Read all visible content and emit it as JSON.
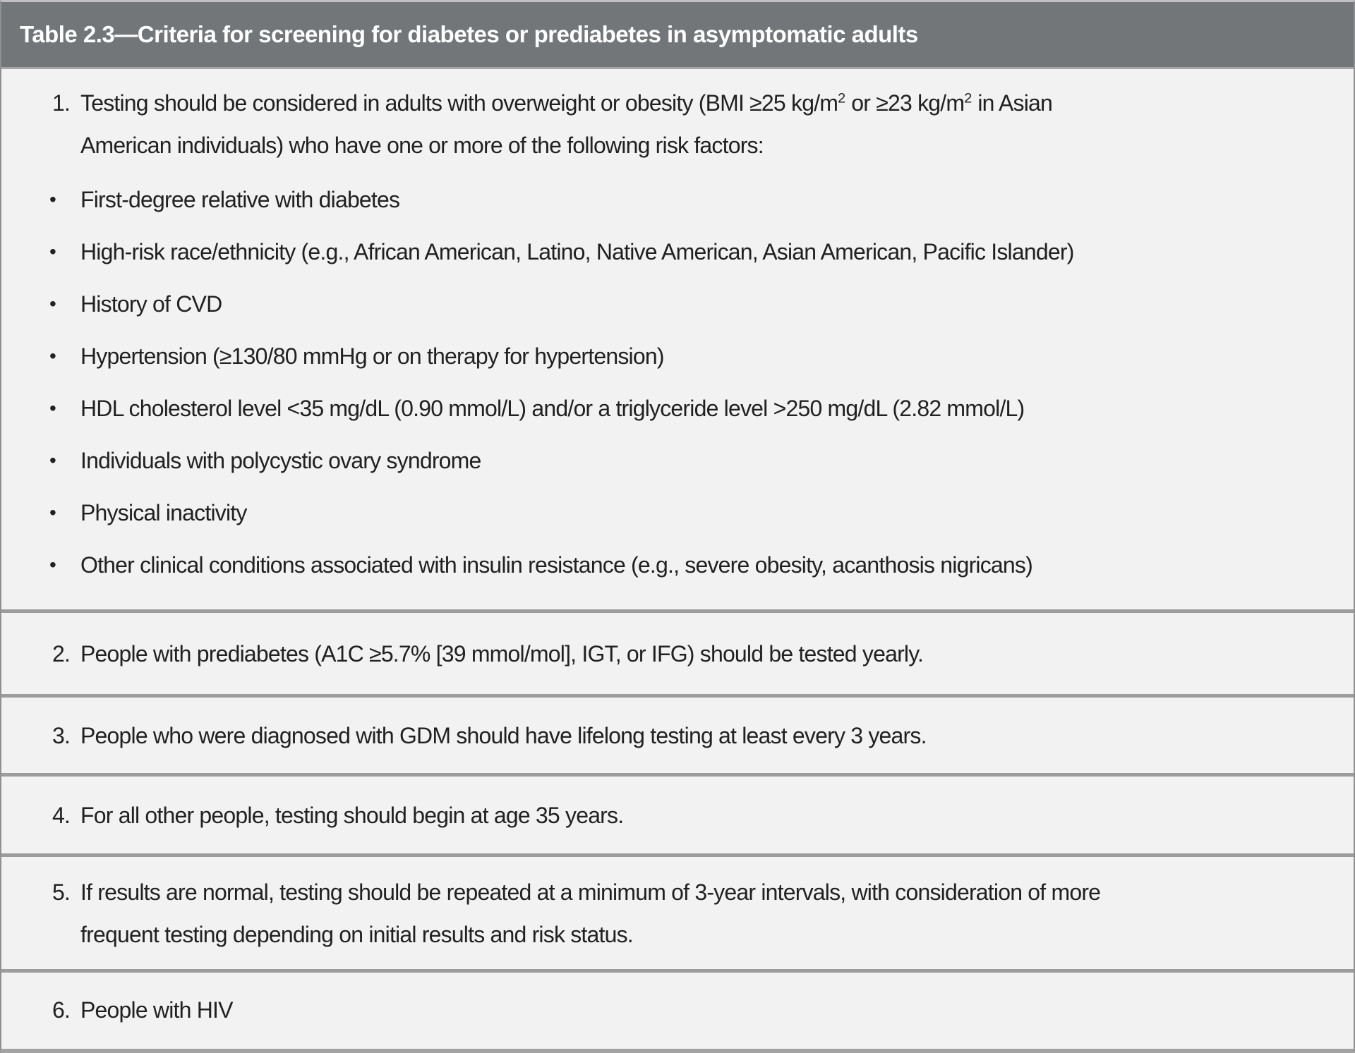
{
  "colors": {
    "header_bg": "#727679",
    "header_text": "#ffffff",
    "body_bg": "#f3f2f2",
    "divider": "#9c9c9c",
    "body_text": "#212121"
  },
  "bullet_glyph": "•",
  "header": {
    "title": "Table 2.3—Criteria for screening for diabetes or prediabetes in asymptomatic adults"
  },
  "rows": [
    {
      "number": "1.",
      "parts": [
        {
          "text": "Testing should be considered in adults with overweight or obesity (BMI ≥25 kg/m"
        },
        {
          "sup": "2"
        },
        {
          "text": " or ≥23 kg/m"
        },
        {
          "sup": "2"
        },
        {
          "text": " in Asian American individuals) who have one or more of the following risk factors:"
        }
      ],
      "bullets": [
        "First-degree relative with diabetes",
        "High-risk race/ethnicity (e.g., African American, Latino, Native American, Asian American, Pacific Islander)",
        "History of CVD",
        "Hypertension (≥130/80 mmHg or on therapy for hypertension)",
        "HDL cholesterol level <35 mg/dL (0.90 mmol/L) and/or a triglyceride level >250 mg/dL (2.82 mmol/L)",
        "Individuals with polycystic ovary syndrome",
        "Physical inactivity",
        "Other clinical conditions associated with insulin resistance (e.g., severe obesity, acanthosis nigricans)"
      ]
    },
    {
      "number": "2.",
      "parts": [
        {
          "text": "People with prediabetes (A1C ≥5.7% [39 mmol/mol], IGT, or IFG) should be tested yearly."
        }
      ]
    },
    {
      "number": "3.",
      "parts": [
        {
          "text": "People who were diagnosed with GDM should have lifelong testing at least every 3 years."
        }
      ]
    },
    {
      "number": "4.",
      "parts": [
        {
          "text": "For all other people, testing should begin at age 35 years."
        }
      ]
    },
    {
      "number": "5.",
      "parts": [
        {
          "text": "If results are normal, testing should be repeated at a minimum of 3-year intervals, with consideration of more frequent testing depending on initial results and risk status."
        }
      ]
    },
    {
      "number": "6.",
      "parts": [
        {
          "text": "People with HIV"
        }
      ]
    }
  ]
}
